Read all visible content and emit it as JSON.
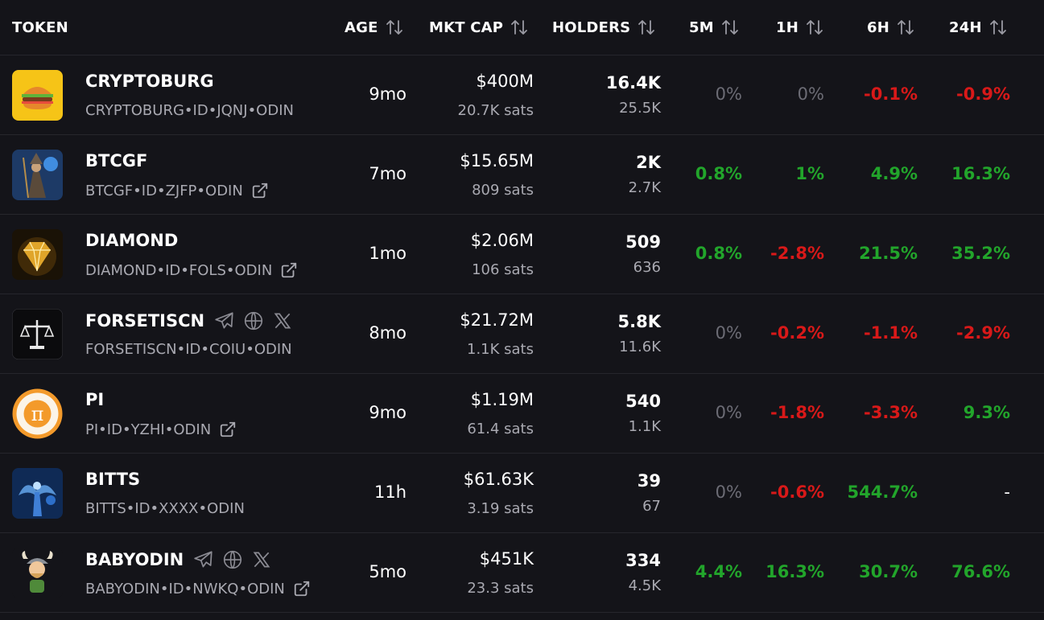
{
  "columns": {
    "token": "TOKEN",
    "age": "AGE",
    "mktcap": "MKT CAP",
    "holders": "HOLDERS",
    "m5": "5M",
    "h1": "1H",
    "h6": "6H",
    "h24": "24H"
  },
  "colors": {
    "positive": "#22a52b",
    "negative": "#d81919",
    "neutral": "#6c6c75",
    "background": "#141419"
  },
  "rows": [
    {
      "name": "CRYPTOBURG",
      "id": "CRYPTOBURG•ID•JQNJ•ODIN",
      "age": "9mo",
      "mktcap": "$400M",
      "sats": "20.7K sats",
      "holders": "16.4K",
      "holders2": "25.5K",
      "m5": "0%",
      "h1": "0%",
      "h6": "-0.1%",
      "h24": "-0.9%",
      "avatar": "burger-icon"
    },
    {
      "name": "BTCGF",
      "id": "BTCGF•ID•ZJFP•ODIN",
      "age": "7mo",
      "mktcap": "$15.65M",
      "sats": "809 sats",
      "holders": "2K",
      "holders2": "2.7K",
      "m5": "0.8%",
      "h1": "1%",
      "h6": "4.9%",
      "h24": "16.3%",
      "avatar": "wizard-icon"
    },
    {
      "name": "DIAMOND",
      "id": "DIAMOND•ID•FOLS•ODIN",
      "age": "1mo",
      "mktcap": "$2.06M",
      "sats": "106 sats",
      "holders": "509",
      "holders2": "636",
      "m5": "0.8%",
      "h1": "-2.8%",
      "h6": "21.5%",
      "h24": "35.2%",
      "avatar": "diamond-icon"
    },
    {
      "name": "FORSETISCN",
      "id": "FORSETISCN•ID•COIU•ODIN",
      "age": "8mo",
      "mktcap": "$21.72M",
      "sats": "1.1K sats",
      "holders": "5.8K",
      "holders2": "11.6K",
      "m5": "0%",
      "h1": "-0.2%",
      "h6": "-1.1%",
      "h24": "-2.9%",
      "avatar": "scales-icon"
    },
    {
      "name": "PI",
      "id": "PI•ID•YZHI•ODIN",
      "age": "9mo",
      "mktcap": "$1.19M",
      "sats": "61.4 sats",
      "holders": "540",
      "holders2": "1.1K",
      "m5": "0%",
      "h1": "-1.8%",
      "h6": "-3.3%",
      "h24": "9.3%",
      "avatar": "pi-coin-icon"
    },
    {
      "name": "BITTS",
      "id": "BITTS•ID•XXXX•ODIN",
      "age": "11h",
      "mktcap": "$61.63K",
      "sats": "3.19 sats",
      "holders": "39",
      "holders2": "67",
      "m5": "0%",
      "h1": "-0.6%",
      "h6": "544.7%",
      "h24": "-",
      "avatar": "angel-icon"
    },
    {
      "name": "BABYODIN",
      "id": "BABYODIN•ID•NWKQ•ODIN",
      "age": "5mo",
      "mktcap": "$451K",
      "sats": "23.3 sats",
      "holders": "334",
      "holders2": "4.5K",
      "m5": "4.4%",
      "h1": "16.3%",
      "h6": "30.7%",
      "h24": "76.6%",
      "avatar": "viking-icon"
    }
  ]
}
